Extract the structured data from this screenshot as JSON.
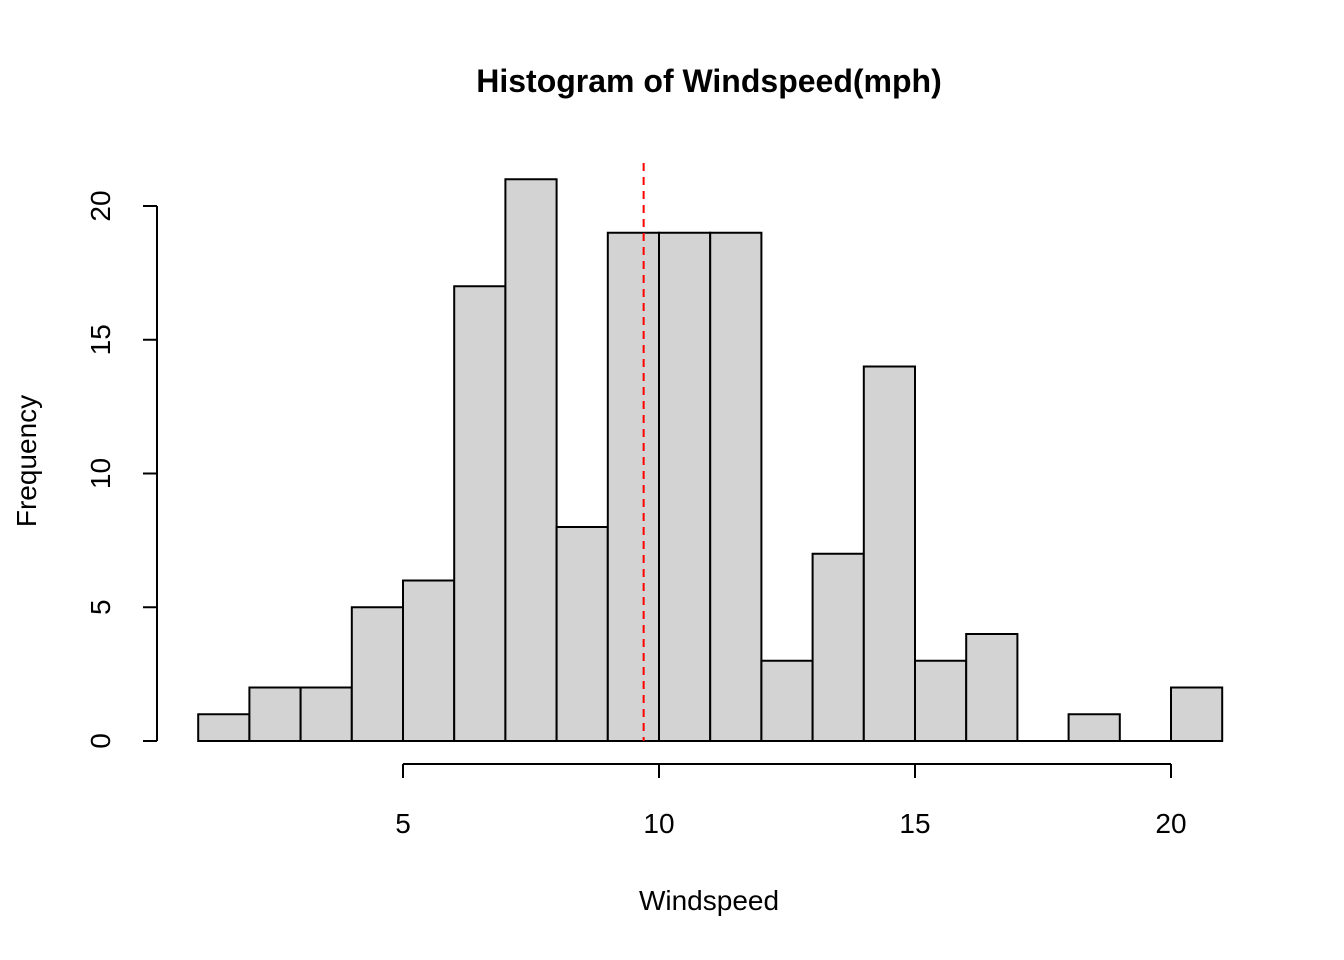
{
  "chart_data": {
    "type": "bar",
    "title": "Histogram of Windspeed(mph)",
    "xlabel": "Windspeed",
    "ylabel": "Frequency",
    "bin_width": 1,
    "bins": [
      {
        "start": 1,
        "end": 2,
        "count": 1
      },
      {
        "start": 2,
        "end": 3,
        "count": 2
      },
      {
        "start": 3,
        "end": 4,
        "count": 2
      },
      {
        "start": 4,
        "end": 5,
        "count": 5
      },
      {
        "start": 5,
        "end": 6,
        "count": 6
      },
      {
        "start": 6,
        "end": 7,
        "count": 17
      },
      {
        "start": 7,
        "end": 8,
        "count": 21
      },
      {
        "start": 8,
        "end": 9,
        "count": 8
      },
      {
        "start": 9,
        "end": 10,
        "count": 19
      },
      {
        "start": 10,
        "end": 11,
        "count": 19
      },
      {
        "start": 11,
        "end": 12,
        "count": 19
      },
      {
        "start": 12,
        "end": 13,
        "count": 3
      },
      {
        "start": 13,
        "end": 14,
        "count": 7
      },
      {
        "start": 14,
        "end": 15,
        "count": 14
      },
      {
        "start": 15,
        "end": 16,
        "count": 3
      },
      {
        "start": 16,
        "end": 17,
        "count": 4
      },
      {
        "start": 17,
        "end": 18,
        "count": 0
      },
      {
        "start": 18,
        "end": 19,
        "count": 1
      },
      {
        "start": 19,
        "end": 20,
        "count": 0
      },
      {
        "start": 20,
        "end": 21,
        "count": 2
      }
    ],
    "x_ticks": [
      5,
      10,
      15,
      20
    ],
    "x_axis_range": [
      5,
      20
    ],
    "y_ticks": [
      0,
      5,
      10,
      15,
      20
    ],
    "y_axis_range": [
      0,
      20
    ],
    "mean_line": {
      "x": 9.7,
      "color": "#ff0000",
      "style": "dashed"
    },
    "bar_color": "#d3d3d3",
    "grid": false,
    "legend": "none"
  }
}
